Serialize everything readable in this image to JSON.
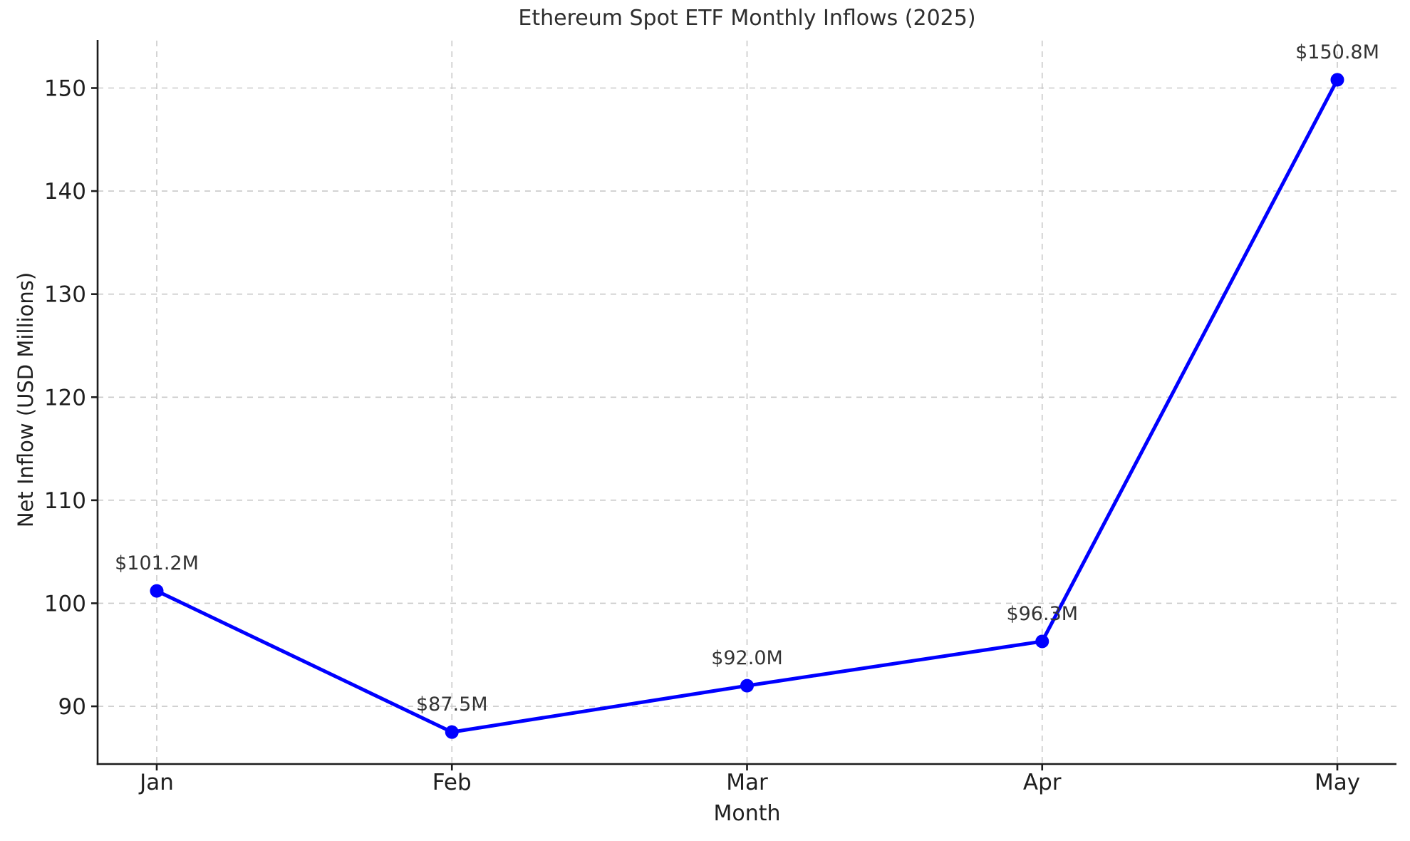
{
  "chart_data": {
    "type": "line",
    "title": "Ethereum Spot ETF Monthly Inflows (2025)",
    "xlabel": "Month",
    "ylabel": "Net Inflow (USD Millions)",
    "categories": [
      "Jan",
      "Feb",
      "Mar",
      "Apr",
      "May"
    ],
    "values": [
      101.2,
      87.5,
      92.0,
      96.3,
      150.8
    ],
    "point_labels": [
      "$101.2M",
      "$87.5M",
      "$92.0M",
      "$96.3M",
      "$150.8M"
    ],
    "yticks": [
      90,
      100,
      110,
      120,
      130,
      140,
      150
    ],
    "ylim": [
      84.4,
      154.6
    ],
    "grid": true,
    "legend": "none",
    "colors": {
      "line": "#0000ff",
      "marker": "#0000ff",
      "grid": "#c9c9c9",
      "axis": "#1c1c1c",
      "tick_text": "#1f1f1f",
      "annotation_text": "#333333"
    }
  }
}
